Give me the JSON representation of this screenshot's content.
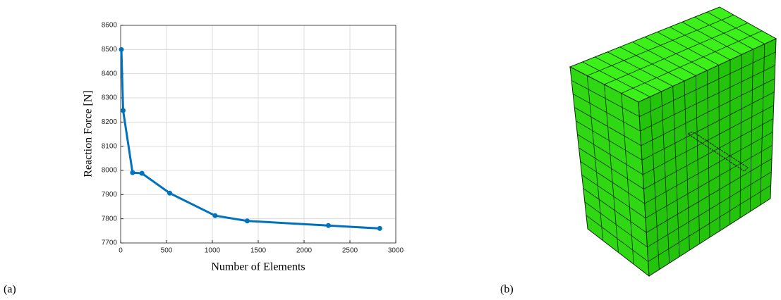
{
  "chart_data": {
    "type": "line",
    "xlabel": "Number of Elements",
    "ylabel": "Reaction Force [N]",
    "x": [
      8,
      27,
      130,
      232,
      535,
      1030,
      1380,
      2265,
      2825
    ],
    "values": [
      8500,
      8248,
      7991,
      7988,
      7906,
      7813,
      7791,
      7772,
      7760
    ],
    "color": "#0072bd",
    "xlim": [
      0,
      3000
    ],
    "xticks": [
      0,
      500,
      1000,
      1500,
      2000,
      2500,
      3000
    ],
    "ylim": [
      7700,
      8600
    ],
    "yticks": [
      7700,
      7800,
      7900,
      8000,
      8100,
      8200,
      8300,
      8400,
      8500,
      8600
    ],
    "grid": true
  },
  "panel_labels": [
    "(a)",
    "(b)"
  ]
}
